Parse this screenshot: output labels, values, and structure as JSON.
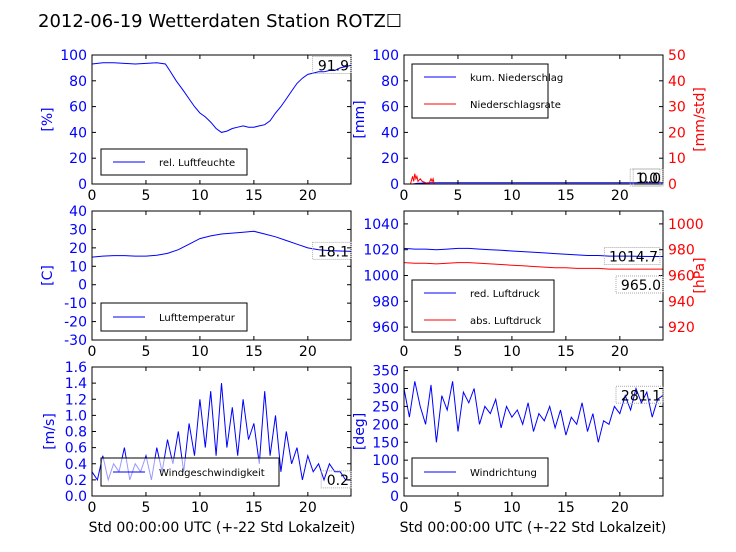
{
  "title": "2012-06-19 Wetterdaten Station ROTZ☐",
  "xlabel": "Std 00:00:00 UTC (+-22 Std Lokalzeit)",
  "colors": {
    "blue": "#0000ff",
    "red": "#ff0000",
    "black": "#000000"
  },
  "chart_data": [
    {
      "type": "line",
      "xlim": [
        0,
        24
      ],
      "xticks": [
        0,
        5,
        10,
        15,
        20
      ],
      "ylim": [
        0,
        100
      ],
      "yticks": [
        0,
        20,
        40,
        60,
        80,
        100
      ],
      "ylabel": "[%]",
      "last_value_label": "91.9",
      "series": [
        {
          "name": "rel. Luftfeuchte",
          "color": "#0000ff",
          "x": [
            0,
            1,
            2,
            3,
            4,
            5,
            6,
            6.8,
            7.2,
            7.8,
            8.5,
            9,
            9.5,
            10,
            10.5,
            11,
            11.5,
            12,
            12.5,
            13,
            13.5,
            14,
            14.5,
            15,
            15.5,
            16,
            16.5,
            17,
            17.5,
            18,
            18.5,
            19,
            19.5,
            20,
            20.5,
            21,
            21.5,
            22,
            22.5,
            23,
            23.5,
            24
          ],
          "y": [
            93,
            94,
            94,
            93.5,
            93,
            93.5,
            94,
            93,
            88,
            80,
            72,
            66,
            60,
            55,
            52,
            48,
            43,
            40,
            41,
            43,
            44,
            45,
            44,
            44,
            45,
            46,
            49,
            55,
            60,
            66,
            72,
            78,
            82,
            85,
            86,
            87,
            87,
            88,
            88,
            90,
            91,
            91.9
          ]
        }
      ]
    },
    {
      "type": "line",
      "xlim": [
        0,
        24
      ],
      "xticks": [
        0,
        5,
        10,
        15,
        20
      ],
      "ylim": [
        0,
        100
      ],
      "yticks": [
        0,
        20,
        40,
        60,
        80,
        100
      ],
      "ylim_right": [
        0,
        50
      ],
      "yticks_right": [
        0,
        10,
        20,
        30,
        40,
        50
      ],
      "ylabel": "[mm]",
      "ylabel_right": "[mm/std]",
      "last_value_label": "1.0",
      "last_value_label_right": "0.0",
      "series": [
        {
          "name": "kum. Niederschlag",
          "color": "#0000ff",
          "axis": "left",
          "x": [
            0,
            0.8,
            1.2,
            2.5,
            24
          ],
          "y": [
            0,
            0,
            0.5,
            1.0,
            1.0
          ]
        },
        {
          "name": "Niederschlagsrate",
          "color": "#ff0000",
          "axis": "right",
          "x": [
            0,
            0.6,
            0.8,
            0.9,
            1.0,
            1.1,
            1.2,
            1.3,
            1.5,
            1.7,
            2.0,
            2.3,
            2.5,
            2.6,
            2.7,
            2.8,
            3.0,
            24
          ],
          "y": [
            0,
            0,
            3,
            1,
            4,
            2,
            3,
            1,
            2,
            1,
            0.5,
            0,
            2,
            1,
            2,
            0,
            0,
            0
          ]
        }
      ]
    },
    {
      "type": "line",
      "xlim": [
        0,
        24
      ],
      "xticks": [
        0,
        5,
        10,
        15,
        20
      ],
      "ylim": [
        -30,
        40
      ],
      "yticks": [
        -30,
        -20,
        -10,
        0,
        10,
        20,
        30,
        40
      ],
      "ylabel": "[C]",
      "last_value_label": "18.1",
      "series": [
        {
          "name": "Lufttemperatur",
          "color": "#0000ff",
          "x": [
            0,
            1,
            2,
            3,
            4,
            5,
            6,
            7,
            8,
            9,
            10,
            11,
            12,
            13,
            14,
            15,
            16,
            17,
            18,
            19,
            20,
            21,
            22,
            23,
            24
          ],
          "y": [
            15,
            15.5,
            15.8,
            15.8,
            15.5,
            15.5,
            16,
            17,
            19,
            22,
            25,
            26.5,
            27.5,
            28,
            28.5,
            29,
            27.5,
            26,
            24,
            22,
            20,
            19,
            18.5,
            18.3,
            18.1
          ]
        }
      ]
    },
    {
      "type": "line",
      "xlim": [
        0,
        24
      ],
      "xticks": [
        0,
        5,
        10,
        15,
        20
      ],
      "ylim": [
        950,
        1050
      ],
      "yticks": [
        960,
        980,
        1000,
        1020,
        1040
      ],
      "ylim_right": [
        910,
        1010
      ],
      "yticks_right": [
        920,
        940,
        960,
        980,
        1000
      ],
      "ylabel_right": "[hPa]",
      "last_value_label": "1014.7",
      "last_value_label_right": "965.0",
      "series": [
        {
          "name": "red. Luftdruck",
          "color": "#0000ff",
          "axis": "left",
          "x": [
            0,
            1,
            2,
            3,
            4,
            5,
            6,
            7,
            8,
            9,
            10,
            11,
            12,
            13,
            14,
            15,
            16,
            17,
            18,
            19,
            20,
            21,
            22,
            23,
            24
          ],
          "y": [
            1021,
            1020.5,
            1020.5,
            1020,
            1020.5,
            1021,
            1021,
            1020.5,
            1020,
            1019.5,
            1019,
            1018.5,
            1018,
            1017.5,
            1017,
            1016.5,
            1016,
            1015.5,
            1015.5,
            1015,
            1015,
            1015,
            1014.8,
            1014.7,
            1014.7
          ]
        },
        {
          "name": "abs. Luftdruck",
          "color": "#ff0000",
          "axis": "right",
          "x": [
            0,
            1,
            2,
            3,
            4,
            5,
            6,
            7,
            8,
            9,
            10,
            11,
            12,
            13,
            14,
            15,
            16,
            17,
            18,
            19,
            20,
            21,
            22,
            23,
            24
          ],
          "y": [
            970,
            969.5,
            969.5,
            969,
            969.5,
            970,
            970,
            969.5,
            969,
            968.5,
            968,
            967.5,
            967,
            966.5,
            966,
            966,
            965.5,
            965.5,
            965.5,
            965,
            965,
            965,
            965,
            965,
            965
          ]
        }
      ]
    },
    {
      "type": "line",
      "xlim": [
        0,
        24
      ],
      "xticks": [
        0,
        5,
        10,
        15,
        20
      ],
      "ylim": [
        0,
        1.6
      ],
      "yticks": [
        0.0,
        0.2,
        0.4,
        0.6,
        0.8,
        1.0,
        1.2,
        1.4,
        1.6
      ],
      "ylabel": "[m/s]",
      "last_value_label": "0.2",
      "series": [
        {
          "name": "Windgeschwindigkeit",
          "color": "#0000ff",
          "x": [
            0,
            0.5,
            1,
            1.5,
            2,
            2.5,
            3,
            3.5,
            4,
            4.5,
            5,
            5.5,
            6,
            6.5,
            7,
            7.5,
            8,
            8.5,
            9,
            9.5,
            10,
            10.5,
            11,
            11.5,
            12,
            12.5,
            13,
            13.5,
            14,
            14.5,
            15,
            15.5,
            16,
            16.5,
            17,
            17.5,
            18,
            18.5,
            19,
            19.5,
            20,
            20.5,
            21,
            21.5,
            22,
            22.5,
            23,
            23.5,
            24
          ],
          "y": [
            0.3,
            0.2,
            0.5,
            0.2,
            0.4,
            0.3,
            0.6,
            0.2,
            0.4,
            0.3,
            0.5,
            0.2,
            0.6,
            0.3,
            0.7,
            0.4,
            0.8,
            0.3,
            0.9,
            0.5,
            1.2,
            0.6,
            1.3,
            0.5,
            1.4,
            0.6,
            1.1,
            0.5,
            1.2,
            0.7,
            0.9,
            0.4,
            1.3,
            0.5,
            1.0,
            0.3,
            0.8,
            0.4,
            0.6,
            0.2,
            0.5,
            0.3,
            0.4,
            0.2,
            0.4,
            0.3,
            0.3,
            0.2,
            0.2
          ]
        }
      ]
    },
    {
      "type": "line",
      "xlim": [
        0,
        24
      ],
      "xticks": [
        0,
        5,
        10,
        15,
        20
      ],
      "ylim": [
        0,
        360
      ],
      "yticks": [
        0,
        50,
        100,
        150,
        200,
        250,
        300,
        350
      ],
      "ylabel": "[deg]",
      "last_value_label": "281.1",
      "series": [
        {
          "name": "Windrichtung",
          "color": "#0000ff",
          "x": [
            0,
            0.5,
            1,
            1.5,
            2,
            2.5,
            3,
            3.5,
            4,
            4.5,
            5,
            5.5,
            6,
            6.5,
            7,
            7.5,
            8,
            8.5,
            9,
            9.5,
            10,
            10.5,
            11,
            11.5,
            12,
            12.5,
            13,
            13.5,
            14,
            14.5,
            15,
            15.5,
            16,
            16.5,
            17,
            17.5,
            18,
            18.5,
            19,
            19.5,
            20,
            20.5,
            21,
            21.5,
            22,
            22.5,
            23,
            23.5,
            24
          ],
          "y": [
            300,
            220,
            320,
            250,
            200,
            310,
            150,
            280,
            240,
            320,
            180,
            290,
            260,
            300,
            200,
            250,
            230,
            270,
            190,
            250,
            220,
            240,
            200,
            260,
            180,
            230,
            210,
            250,
            190,
            240,
            170,
            220,
            200,
            260,
            180,
            230,
            150,
            210,
            200,
            250,
            230,
            280,
            240,
            300,
            260,
            290,
            220,
            270,
            281.1
          ]
        }
      ]
    }
  ]
}
